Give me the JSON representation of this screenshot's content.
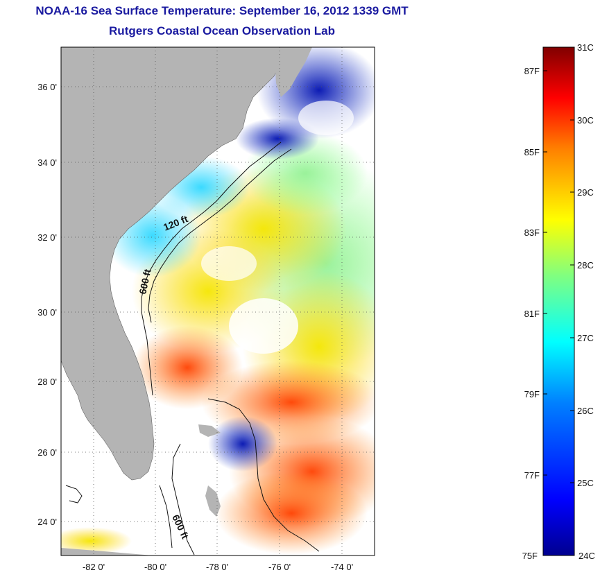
{
  "title": {
    "line1": "NOAA-16 Sea Surface Temperature:  September 16, 2012 1339 GMT",
    "line2": "Rutgers Coastal Ocean Observation Lab"
  },
  "map": {
    "lat_ticks": [
      "36 0'",
      "34 0'",
      "32 0'",
      "30 0'",
      "28 0'",
      "26 0'",
      "24 0'"
    ],
    "lon_ticks": [
      "-82 0'",
      "-80 0'",
      "-78 0'",
      "-76 0'",
      "-74 0'"
    ],
    "contour_labels": [
      "120 ft",
      "600 ft",
      "600 ft"
    ],
    "colors": {
      "land": "#b4b4b4",
      "ocean_missing": "#ffffff",
      "frame": "#000000"
    }
  },
  "colorbar": {
    "celsius_labels": [
      "31C",
      "30C",
      "29C",
      "28C",
      "27C",
      "26C",
      "25C",
      "24C"
    ],
    "fahrenheit_labels": [
      "87F",
      "85F",
      "83F",
      "81F",
      "79F",
      "77F",
      "75F"
    ],
    "range_c": [
      24,
      31
    ],
    "colormap": [
      "#00008f",
      "#0000ff",
      "#0080ff",
      "#00ffff",
      "#80ff80",
      "#ffff00",
      "#ff8000",
      "#ff0000",
      "#800000"
    ]
  }
}
